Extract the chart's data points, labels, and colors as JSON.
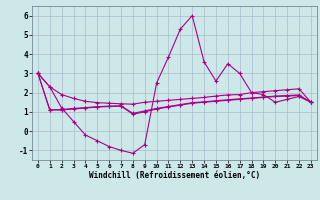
{
  "xlabel": "Windchill (Refroidissement éolien,°C)",
  "bg_color": "#cce8e8",
  "grid_color": "#aabccc",
  "line_color": "#aa0088",
  "xlim": [
    -0.5,
    23.5
  ],
  "ylim": [
    -1.5,
    6.5
  ],
  "yticks": [
    -1,
    0,
    1,
    2,
    3,
    4,
    5,
    6
  ],
  "xticks": [
    0,
    1,
    2,
    3,
    4,
    5,
    6,
    7,
    8,
    9,
    10,
    11,
    12,
    13,
    14,
    15,
    16,
    17,
    18,
    19,
    20,
    21,
    22,
    23
  ],
  "xlabels": [
    "0",
    "1",
    "2",
    "3",
    "4",
    "5",
    "6",
    "7",
    "8",
    "9",
    "10",
    "11",
    "12",
    "13",
    "14",
    "15",
    "16",
    "17",
    "18",
    "19",
    "20",
    "21",
    "22",
    "23"
  ],
  "series1": [
    3.0,
    2.3,
    1.9,
    1.7,
    1.55,
    1.48,
    1.45,
    1.42,
    1.4,
    1.5,
    1.55,
    1.6,
    1.65,
    1.7,
    1.75,
    1.82,
    1.88,
    1.9,
    2.0,
    2.05,
    2.1,
    2.15,
    2.2,
    1.5
  ],
  "series2": [
    3.0,
    2.3,
    1.2,
    0.5,
    -0.2,
    -0.5,
    -0.8,
    -1.0,
    -1.15,
    -0.7,
    2.5,
    3.85,
    5.3,
    6.0,
    3.6,
    2.6,
    3.5,
    3.0,
    2.0,
    1.9,
    1.5,
    1.65,
    1.8,
    1.5
  ],
  "series3": [
    3.0,
    1.1,
    1.1,
    1.15,
    1.2,
    1.25,
    1.28,
    1.3,
    0.88,
    1.0,
    1.15,
    1.25,
    1.35,
    1.45,
    1.5,
    1.55,
    1.6,
    1.65,
    1.7,
    1.75,
    1.8,
    1.82,
    1.85,
    1.5
  ],
  "series4": [
    3.0,
    1.1,
    1.12,
    1.18,
    1.22,
    1.27,
    1.3,
    1.32,
    0.92,
    1.05,
    1.18,
    1.28,
    1.38,
    1.48,
    1.52,
    1.58,
    1.63,
    1.68,
    1.72,
    1.77,
    1.82,
    1.85,
    1.88,
    1.5
  ]
}
